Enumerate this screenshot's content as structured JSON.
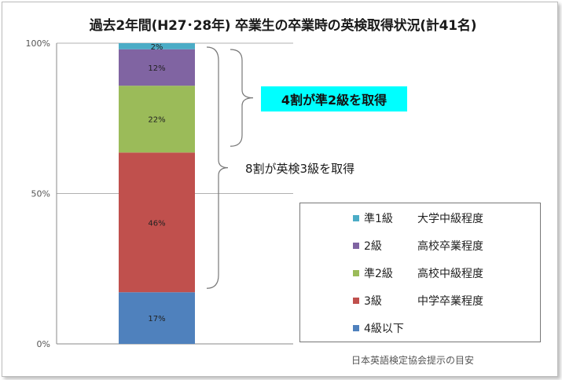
{
  "chart_data": {
    "type": "bar",
    "stacked": true,
    "title": "過去2年間(H27･28年) 卒業生の卒業時の英検取得状況(計41名)",
    "categories": [
      ""
    ],
    "series": [
      {
        "name": "4級以下",
        "values": [
          17
        ],
        "label": "17%",
        "color": "#4f81bd"
      },
      {
        "name": "3級",
        "note": "中学卒業程度",
        "values": [
          46
        ],
        "label": "46%",
        "color": "#c0504d"
      },
      {
        "name": "準2級",
        "note": "高校中級程度",
        "values": [
          22
        ],
        "label": "22%",
        "color": "#9bbb59"
      },
      {
        "name": "2級",
        "note": "高校卒業程度",
        "values": [
          12
        ],
        "label": "12%",
        "color": "#8064a2"
      },
      {
        "name": "準1級",
        "note": "大学中級程度",
        "values": [
          2
        ],
        "label": "2%",
        "color": "#4bacc6"
      }
    ],
    "ylim": [
      0,
      100
    ],
    "yticks": [
      "0%",
      "50%",
      "100%"
    ],
    "ytick_values": [
      0,
      50,
      100
    ],
    "grid": true,
    "legend_position": "right"
  },
  "annotations": {
    "highlight_text": "4割が準2級を取得",
    "highlight_color": "#00ffff",
    "bracket_text": "8割が英検3級を取得",
    "source_note": "日本英語検定協会提示の目安"
  }
}
